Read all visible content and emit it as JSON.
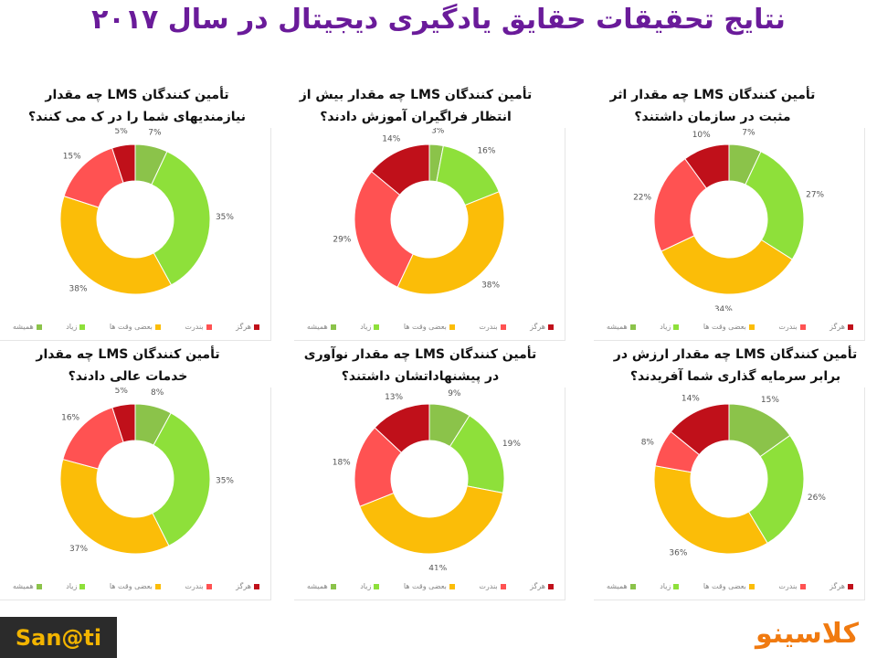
{
  "header": {
    "title": "نتایج تحقیقات حقایق یادگیری دیجیتال در سال ۲۰۱۷"
  },
  "legend": {
    "items": [
      {
        "label": "همیشه",
        "color": "#8bc34a"
      },
      {
        "label": "زیاد",
        "color": "#8ee03a"
      },
      {
        "label": "بعضی وقت ها",
        "color": "#fbbd08"
      },
      {
        "label": "بندرت",
        "color": "#ff5252"
      },
      {
        "label": "هرگز",
        "color": "#c0101a"
      }
    ]
  },
  "footer": {
    "left_logo": "San@ti",
    "right_logo": "کلاسینو"
  },
  "chart_data": [
    {
      "type": "pie",
      "question": "تأمین کنندگان LMS چه مقدار اثر مثبت در سازمان داشتند؟",
      "categories": [
        "همیشه",
        "زیاد",
        "بعضی وقت ها",
        "بندرت",
        "هرگز"
      ],
      "values": [
        7,
        27,
        34,
        22,
        10
      ],
      "labels": [
        "7%",
        "27%",
        "34%",
        "22%",
        "10%"
      ]
    },
    {
      "type": "pie",
      "question": "تأمین کنندگان LMS چه مقدار بیش از انتظار فراگیران آموزش دادند؟",
      "categories": [
        "همیشه",
        "زیاد",
        "بعضی وقت ها",
        "بندرت",
        "هرگز"
      ],
      "values": [
        3,
        16,
        38,
        29,
        14
      ],
      "labels": [
        "3%",
        "16%",
        "38%",
        "29%",
        "14%"
      ]
    },
    {
      "type": "pie",
      "question": "تأمین کنندگان LMS چه مقدار نیازمندیهای شما را در ک می کنند؟",
      "categories": [
        "همیشه",
        "زیاد",
        "بعضی وقت ها",
        "بندرت",
        "هرگز"
      ],
      "values": [
        7,
        35,
        38,
        15,
        5
      ],
      "labels": [
        "7%",
        "35%",
        "38%",
        "15%",
        "5%"
      ]
    },
    {
      "type": "pie",
      "question": "تأمین کنندگان LMS چه مقدار ارزش در برابر سرمایه گذاری شما آفریدند؟",
      "categories": [
        "همیشه",
        "زیاد",
        "بعضی وقت ها",
        "بندرت",
        "هرگز"
      ],
      "values": [
        15,
        26,
        36,
        8,
        14
      ],
      "labels": [
        "15%",
        "26%",
        "36%",
        "8%",
        "14%"
      ]
    },
    {
      "type": "pie",
      "question": "تأمین کنندگان LMS چه مقدار نوآوری در پیشنهاداتشان داشتند؟",
      "categories": [
        "همیشه",
        "زیاد",
        "بعضی وقت ها",
        "بندرت",
        "هرگز"
      ],
      "values": [
        9,
        19,
        41,
        18,
        13
      ],
      "labels": [
        "9%",
        "19%",
        "41%",
        "18%",
        "13%"
      ]
    },
    {
      "type": "pie",
      "question": "تأمین کنندگان LMS چه مقدار خدمات عالی دادند؟",
      "categories": [
        "همیشه",
        "زیاد",
        "بعضی وقت ها",
        "بندرت",
        "هرگز"
      ],
      "values": [
        8,
        35,
        37,
        16,
        5
      ],
      "labels": [
        "8%",
        "35%",
        "37%",
        "16%",
        "5%"
      ]
    }
  ]
}
